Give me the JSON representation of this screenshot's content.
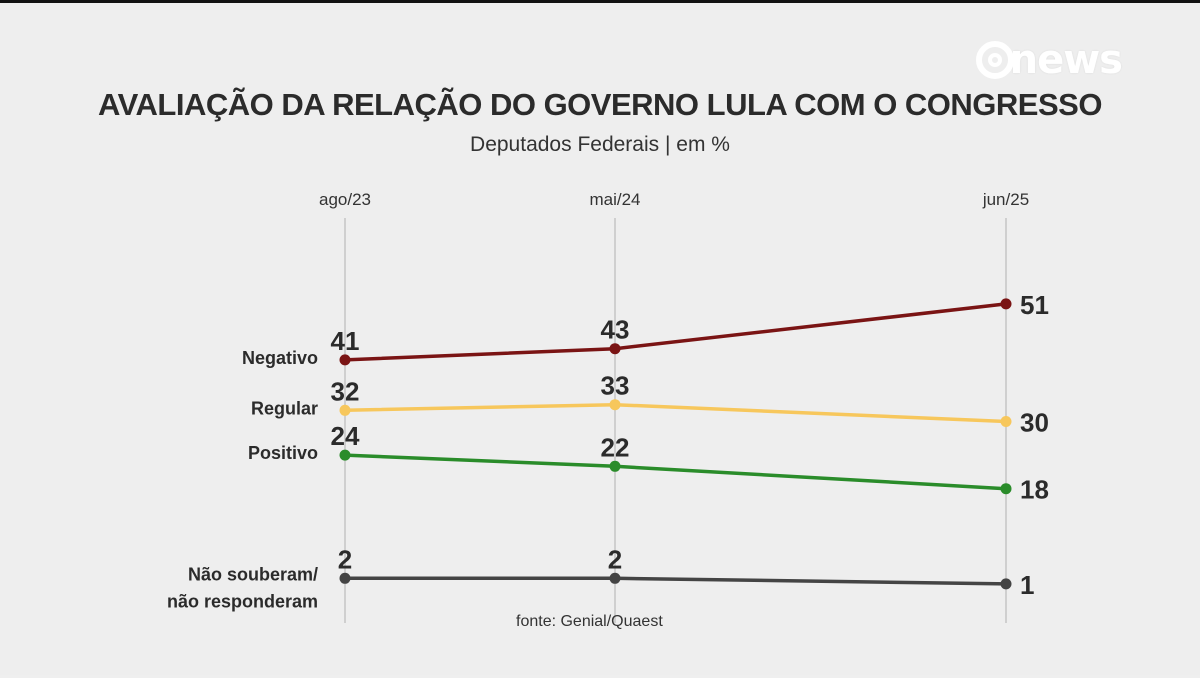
{
  "brand": {
    "logo_text": "news"
  },
  "chart_data": {
    "type": "line",
    "title": "AVALIAÇÃO DA RELAÇÃO DO GOVERNO LULA COM O CONGRESSO",
    "subtitle": "Deputados Federais | em %",
    "x": [
      "ago/23",
      "mai/24",
      "jun/25"
    ],
    "series": [
      {
        "name": "Negativo",
        "color": "#7a1414",
        "values": [
          41,
          43,
          51
        ]
      },
      {
        "name": "Regular",
        "color": "#f7c75c",
        "values": [
          32,
          33,
          30
        ]
      },
      {
        "name": "Positivo",
        "color": "#2a8c2a",
        "values": [
          24,
          22,
          18
        ]
      },
      {
        "name": "Não souberam/ não responderam",
        "name_lines": [
          "Não souberam/",
          "não responderam"
        ],
        "color": "#444444",
        "values": [
          2,
          2,
          1
        ]
      }
    ],
    "ylim": [
      0,
      60
    ],
    "grid": false,
    "legend": "left labels"
  },
  "source": "fonte: Genial/Quaest"
}
